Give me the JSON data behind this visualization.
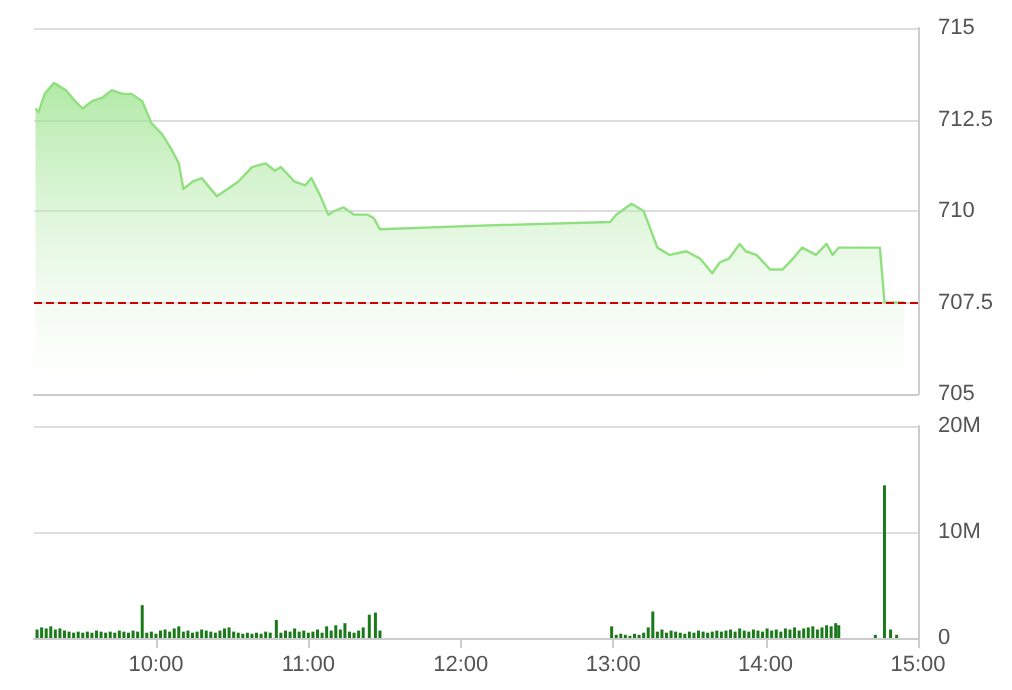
{
  "chart_data": [
    {
      "type": "area",
      "color": "#90e080",
      "xlim": [
        9.2,
        15
      ],
      "ylim": [
        705,
        715
      ],
      "yticks": [
        705,
        707.5,
        710,
        712.5,
        715
      ],
      "grid": "y",
      "tick_labels": "y",
      "x": [
        9.21,
        9.23,
        9.27,
        9.33,
        9.41,
        9.47,
        9.52,
        9.58,
        9.65,
        9.71,
        9.78,
        9.84,
        9.91,
        9.97,
        10.04,
        10.1,
        10.15,
        10.18,
        10.24,
        10.3,
        10.34,
        10.4,
        10.47,
        10.54,
        10.63,
        10.72,
        10.78,
        10.82,
        10.91,
        10.98,
        11.02,
        11.08,
        11.13,
        11.17,
        11.23,
        11.3,
        11.39,
        11.43,
        11.47,
        12.13,
        12.98,
        13.02,
        13.12,
        13.2,
        13.29,
        13.37,
        13.48,
        13.57,
        13.65,
        13.7,
        13.76,
        13.83,
        13.87,
        13.94,
        14.03,
        14.11,
        14.18,
        14.24,
        14.33,
        14.4,
        14.44,
        14.48,
        14.75,
        14.78,
        14.91
      ],
      "values": [
        712.8,
        712.7,
        713.2,
        713.5,
        713.3,
        713.0,
        712.8,
        713.0,
        713.1,
        713.3,
        713.2,
        713.2,
        713.0,
        712.4,
        712.1,
        711.7,
        711.3,
        710.6,
        710.8,
        710.9,
        710.7,
        710.4,
        710.6,
        710.8,
        711.2,
        711.3,
        711.1,
        711.2,
        710.8,
        710.7,
        710.9,
        710.4,
        709.9,
        710.0,
        710.1,
        709.9,
        709.9,
        709.8,
        709.5,
        709.6,
        709.7,
        709.9,
        710.2,
        710.0,
        709.0,
        708.8,
        708.9,
        708.7,
        708.3,
        708.6,
        708.7,
        709.1,
        708.9,
        708.8,
        708.4,
        708.4,
        708.7,
        709.0,
        708.8,
        709.1,
        708.8,
        709.0,
        709.0,
        707.5,
        707.5
      ],
      "ref_lines": [
        {
          "axis": "y",
          "value": 707.5,
          "color": "#cc0000",
          "line_style": "dashed"
        }
      ]
    },
    {
      "type": "bar",
      "color": "#1a7a1a",
      "xlim": [
        9.2,
        15
      ],
      "xticks": [
        {
          "value": 10,
          "label": "10:00"
        },
        {
          "value": 11,
          "label": "11:00"
        },
        {
          "value": 12,
          "label": "12:00"
        },
        {
          "value": 13,
          "label": "13:00"
        },
        {
          "value": 14,
          "label": "14:00"
        },
        {
          "value": 15,
          "label": "15:00"
        }
      ],
      "ylim": [
        0,
        20
      ],
      "yticks": [
        {
          "value": 0,
          "label": "0"
        },
        {
          "value": 10,
          "label": "10M"
        },
        {
          "value": 20,
          "label": "20M"
        }
      ],
      "grid": "y",
      "x": [
        9.22,
        9.25,
        9.28,
        9.31,
        9.34,
        9.37,
        9.4,
        9.43,
        9.46,
        9.49,
        9.52,
        9.55,
        9.58,
        9.61,
        9.64,
        9.67,
        9.7,
        9.73,
        9.76,
        9.79,
        9.82,
        9.85,
        9.88,
        9.91,
        9.94,
        9.97,
        10.0,
        10.03,
        10.06,
        10.09,
        10.12,
        10.15,
        10.18,
        10.21,
        10.24,
        10.27,
        10.3,
        10.33,
        10.36,
        10.39,
        10.42,
        10.45,
        10.48,
        10.51,
        10.54,
        10.57,
        10.6,
        10.63,
        10.66,
        10.69,
        10.72,
        10.75,
        10.79,
        10.82,
        10.85,
        10.88,
        10.91,
        10.94,
        10.97,
        11.0,
        11.03,
        11.06,
        11.09,
        11.12,
        11.15,
        11.18,
        11.21,
        11.24,
        11.27,
        11.3,
        11.33,
        11.36,
        11.4,
        11.44,
        11.47,
        12.99,
        13.02,
        13.05,
        13.08,
        13.11,
        13.14,
        13.17,
        13.2,
        13.23,
        13.26,
        13.29,
        13.32,
        13.35,
        13.38,
        13.41,
        13.44,
        13.47,
        13.5,
        13.53,
        13.56,
        13.59,
        13.62,
        13.65,
        13.68,
        13.71,
        13.74,
        13.77,
        13.8,
        13.83,
        13.86,
        13.89,
        13.92,
        13.95,
        13.98,
        14.01,
        14.04,
        14.07,
        14.1,
        14.13,
        14.16,
        14.19,
        14.22,
        14.25,
        14.28,
        14.31,
        14.34,
        14.37,
        14.4,
        14.43,
        14.46,
        14.48,
        14.72,
        14.78,
        14.82,
        14.86
      ],
      "values": [
        0.8,
        1.0,
        0.9,
        1.1,
        0.8,
        0.9,
        0.7,
        0.6,
        0.5,
        0.6,
        0.5,
        0.6,
        0.5,
        0.7,
        0.6,
        0.5,
        0.6,
        0.5,
        0.7,
        0.6,
        0.5,
        0.7,
        0.6,
        3.1,
        0.5,
        0.6,
        0.4,
        0.7,
        0.8,
        0.6,
        0.9,
        1.1,
        0.6,
        0.7,
        0.5,
        0.6,
        0.8,
        0.7,
        0.6,
        0.5,
        0.7,
        0.9,
        1.0,
        0.6,
        0.5,
        0.4,
        0.5,
        0.4,
        0.5,
        0.4,
        0.6,
        0.5,
        1.7,
        0.5,
        0.7,
        0.6,
        0.9,
        0.6,
        0.7,
        0.5,
        0.6,
        0.8,
        0.5,
        1.1,
        0.7,
        1.2,
        0.8,
        1.4,
        0.6,
        0.5,
        0.7,
        1.0,
        2.2,
        2.4,
        0.7,
        1.1,
        0.3,
        0.4,
        0.3,
        0.2,
        0.4,
        0.3,
        0.5,
        1.0,
        2.5,
        0.6,
        0.8,
        0.5,
        0.7,
        0.6,
        0.5,
        0.4,
        0.6,
        0.5,
        0.7,
        0.6,
        0.5,
        0.6,
        0.7,
        0.6,
        0.7,
        0.8,
        0.6,
        0.9,
        0.7,
        0.6,
        0.8,
        0.7,
        0.6,
        0.9,
        0.7,
        0.8,
        0.6,
        0.9,
        0.8,
        1.0,
        0.7,
        0.9,
        1.0,
        1.1,
        0.8,
        1.0,
        1.2,
        1.1,
        1.4,
        1.2,
        0.3,
        14.4,
        0.8,
        0.3
      ]
    }
  ]
}
